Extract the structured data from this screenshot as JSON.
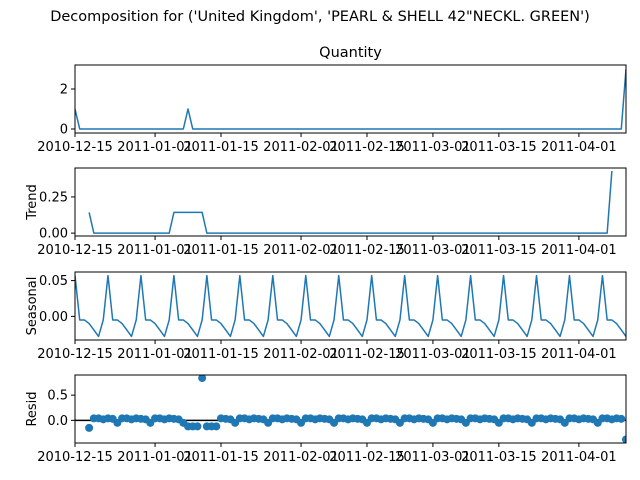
{
  "suptitle": "Decomposition for ('United Kingdom', 'PEARL & SHELL 42\"NECKL. GREEN')",
  "colors": {
    "line": "#1f77b4",
    "axis": "#000000",
    "background": "#ffffff"
  },
  "chart_data": [
    {
      "type": "line",
      "title": "Quantity",
      "ylabel": "",
      "xlim": [
        "2010-12-15",
        "2011-04-11"
      ],
      "ylim": [
        -0.2,
        3.2
      ],
      "yticks": [
        0,
        2
      ],
      "xticks": [
        "2010-12-15",
        "2011-01-01",
        "2011-01-15",
        "2011-02-01",
        "2011-02-15",
        "2011-03-01",
        "2011-03-15",
        "2011-04-01"
      ],
      "series": [
        {
          "points": [
            [
              "2010-12-15",
              1.0
            ],
            [
              "2010-12-16",
              0.0
            ],
            [
              "2011-01-07",
              0.0
            ],
            [
              "2011-01-08",
              1.0
            ],
            [
              "2011-01-09",
              0.0
            ],
            [
              "2011-04-10",
              0.0
            ],
            [
              "2011-04-11",
              3.0
            ]
          ]
        }
      ]
    },
    {
      "type": "line",
      "title": "",
      "ylabel": "Trend",
      "xlim": [
        "2010-12-15",
        "2011-04-11"
      ],
      "ylim": [
        -0.02,
        0.45
      ],
      "yticks": [
        0.0,
        0.25
      ],
      "ytick_labels": [
        "0.00",
        "0.25"
      ],
      "xticks": [
        "2010-12-15",
        "2011-01-01",
        "2011-01-15",
        "2011-02-01",
        "2011-02-15",
        "2011-03-01",
        "2011-03-15",
        "2011-04-01"
      ],
      "series": [
        {
          "points": [
            [
              "2010-12-18",
              0.143
            ],
            [
              "2010-12-19",
              0.0
            ],
            [
              "2011-01-04",
              0.0
            ],
            [
              "2011-01-05",
              0.143
            ],
            [
              "2011-01-11",
              0.143
            ],
            [
              "2011-01-12",
              0.0
            ],
            [
              "2011-04-07",
              0.0
            ],
            [
              "2011-04-08",
              0.429
            ]
          ]
        }
      ]
    },
    {
      "type": "line",
      "title": "",
      "ylabel": "Seasonal",
      "xlim": [
        "2010-12-15",
        "2011-04-11"
      ],
      "ylim": [
        -0.033,
        0.062
      ],
      "yticks": [
        0.0,
        0.05
      ],
      "ytick_labels": [
        "0.00",
        "0.05"
      ],
      "xticks": [
        "2010-12-15",
        "2011-01-01",
        "2011-01-15",
        "2011-02-01",
        "2011-02-15",
        "2011-03-01",
        "2011-03-15",
        "2011-04-01"
      ],
      "period_days": 7,
      "start": "2010-12-15",
      "end": "2011-04-11",
      "pattern": [
        0.057,
        -0.005,
        -0.005,
        -0.01,
        -0.019,
        -0.028,
        -0.005
      ]
    },
    {
      "type": "scatter",
      "title": "",
      "ylabel": "Resid",
      "xlim": [
        "2010-12-15",
        "2011-04-11"
      ],
      "ylim": [
        -0.45,
        0.9
      ],
      "yticks": [
        0.0,
        0.5
      ],
      "ytick_labels": [
        "0.0",
        "0.5"
      ],
      "xticks": [
        "2010-12-15",
        "2011-01-01",
        "2011-01-15",
        "2011-02-01",
        "2011-02-15",
        "2011-03-01",
        "2011-03-15",
        "2011-04-01"
      ],
      "zero_line": 0,
      "start": "2010-12-18",
      "values": [
        -0.15,
        0.04,
        0.04,
        0.02,
        0.04,
        0.03,
        -0.05,
        0.04,
        0.04,
        0.02,
        0.04,
        0.03,
        0.02,
        -0.05,
        0.04,
        0.04,
        0.02,
        0.04,
        0.03,
        0.02,
        -0.05,
        -0.12,
        -0.12,
        -0.12,
        0.84,
        -0.12,
        -0.12,
        -0.12,
        0.04,
        0.03,
        0.02,
        -0.05,
        0.04,
        0.04,
        0.02,
        0.04,
        0.03,
        0.02,
        -0.05,
        0.04,
        0.04,
        0.02,
        0.04,
        0.03,
        0.02,
        -0.05,
        0.04,
        0.04,
        0.02,
        0.04,
        0.03,
        0.02,
        -0.05,
        0.04,
        0.04,
        0.02,
        0.04,
        0.03,
        0.02,
        -0.05,
        0.04,
        0.04,
        0.02,
        0.04,
        0.03,
        0.02,
        -0.05,
        0.04,
        0.04,
        0.02,
        0.04,
        0.03,
        0.02,
        -0.05,
        0.04,
        0.04,
        0.02,
        0.04,
        0.03,
        0.02,
        -0.05,
        0.04,
        0.04,
        0.02,
        0.04,
        0.03,
        0.02,
        -0.05,
        0.04,
        0.04,
        0.02,
        0.04,
        0.03,
        0.02,
        -0.05,
        0.04,
        0.04,
        0.02,
        0.04,
        0.03,
        0.02,
        -0.05,
        0.04,
        0.04,
        0.02,
        0.04,
        0.03,
        0.02,
        -0.05,
        0.04,
        0.04,
        0.02,
        0.04,
        0.03,
        -0.38
      ]
    }
  ]
}
